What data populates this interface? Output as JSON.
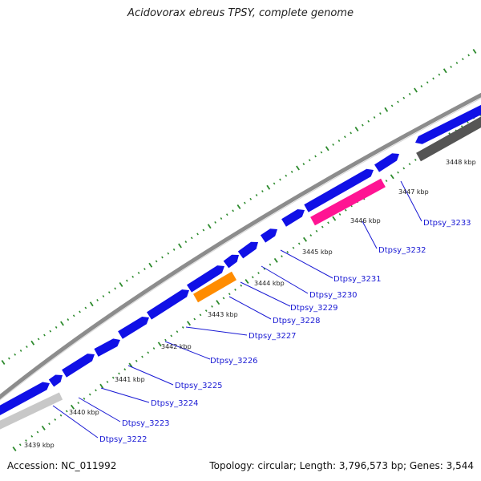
{
  "title": "Acidovorax ebreus TPSY, complete genome",
  "accession": "Accession: NC_011992",
  "topology": "Topology: circular; Length: 3,796,573 bp; Genes: 3,544",
  "colors": {
    "backbone": "#8c8c8c",
    "cds": "#1010e6",
    "highlight_orange": "#ff8c00",
    "highlight_pink": "#ff1493",
    "gray_light": "#c8c8c8",
    "gray_dark": "#555555",
    "tick": "#2e8b2e",
    "label": "#1a1ad4"
  },
  "scale_labels": [
    "3439 kbp",
    "3440 kbp",
    "3441 kbp",
    "3442 kbp",
    "3443 kbp",
    "3444 kbp",
    "3445 kbp",
    "3446 kbp",
    "3447 kbp",
    "3448 kbp"
  ],
  "gene_labels": [
    "Dtpsy_3222",
    "Dtpsy_3223",
    "Dtpsy_3224",
    "Dtpsy_3225",
    "Dtpsy_3226",
    "Dtpsy_3227",
    "Dtpsy_3228",
    "Dtpsy_3229",
    "Dtpsy_3230",
    "Dtpsy_3231",
    "Dtpsy_3232",
    "Dtpsy_3233"
  ]
}
